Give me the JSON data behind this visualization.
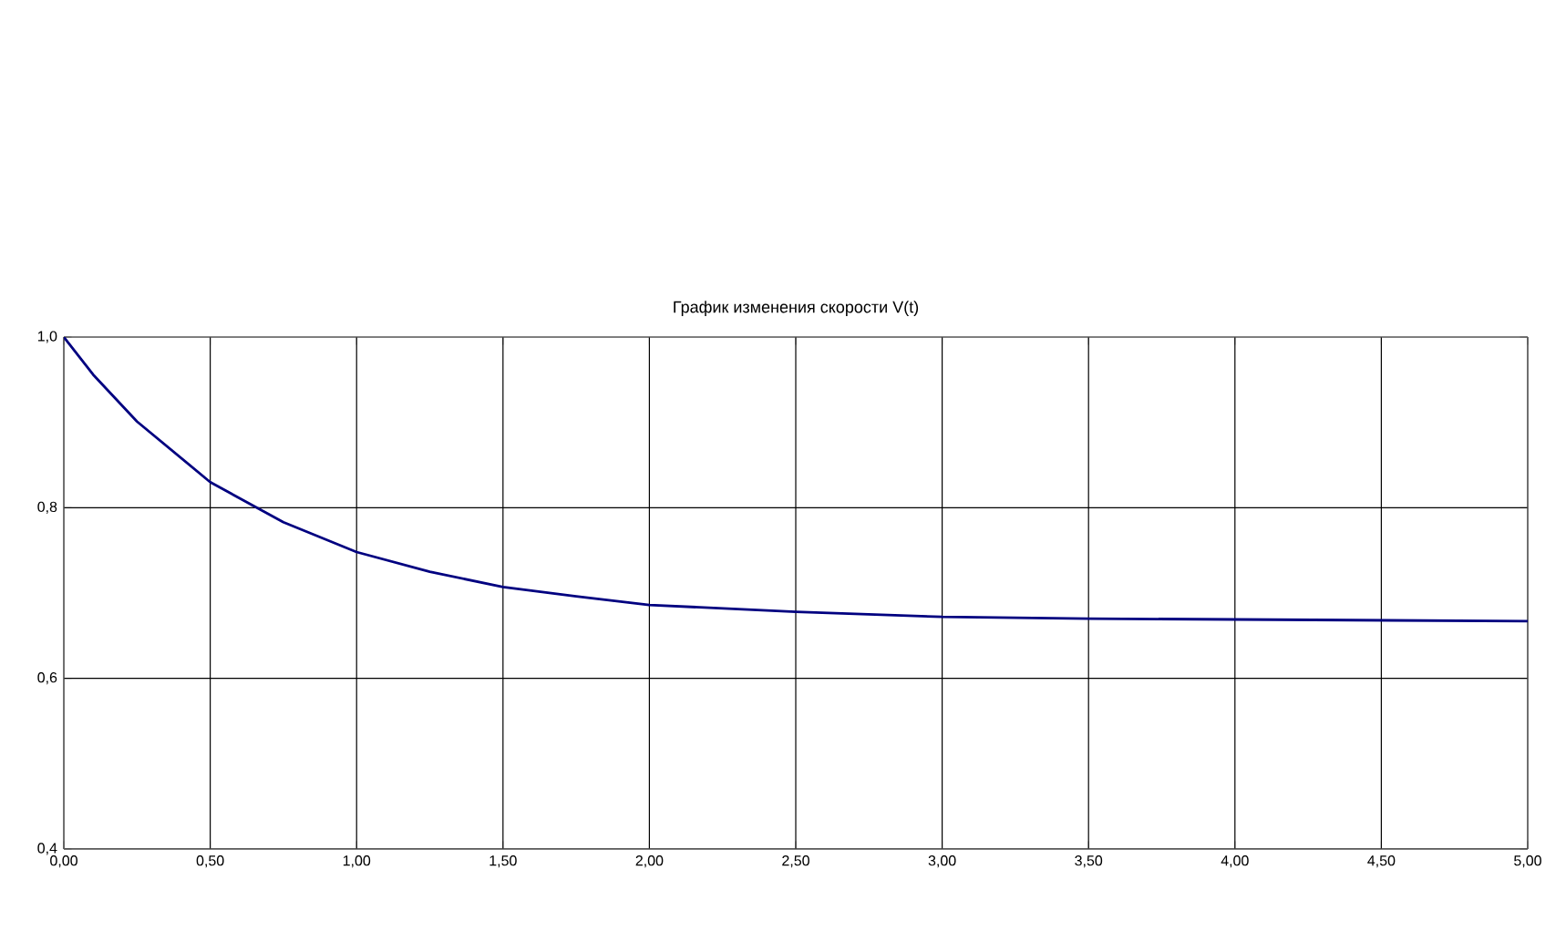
{
  "chart_data": {
    "type": "line",
    "title": "График изменения скорости V(t)",
    "x": [
      0,
      0.1,
      0.25,
      0.5,
      0.75,
      1.0,
      1.25,
      1.5,
      1.75,
      2.0,
      2.5,
      3.0,
      3.5,
      4.0,
      4.5,
      5.0
    ],
    "values": [
      1.0,
      0.956,
      0.901,
      0.83,
      0.783,
      0.748,
      0.725,
      0.707,
      0.696,
      0.686,
      0.678,
      0.672,
      0.67,
      0.669,
      0.668,
      0.667
    ],
    "color": "#000080",
    "xlim": [
      0,
      5
    ],
    "ylim": [
      0.4,
      1.0
    ],
    "xticks": [
      {
        "value": 0,
        "label": "0,00"
      },
      {
        "value": 0.5,
        "label": "0,50"
      },
      {
        "value": 1,
        "label": "1,00"
      },
      {
        "value": 1.5,
        "label": "1,50"
      },
      {
        "value": 2,
        "label": "2,00"
      },
      {
        "value": 2.5,
        "label": "2,50"
      },
      {
        "value": 3,
        "label": "3,00"
      },
      {
        "value": 3.5,
        "label": "3,50"
      },
      {
        "value": 4,
        "label": "4,00"
      },
      {
        "value": 4.5,
        "label": "4,50"
      },
      {
        "value": 5,
        "label": "5,00"
      }
    ],
    "yticks": [
      {
        "value": 0.4,
        "label": "0,4"
      },
      {
        "value": 0.6,
        "label": "0,6"
      },
      {
        "value": 0.8,
        "label": "0,8"
      },
      {
        "value": 1.0,
        "label": "1,0"
      }
    ],
    "grid": true
  }
}
